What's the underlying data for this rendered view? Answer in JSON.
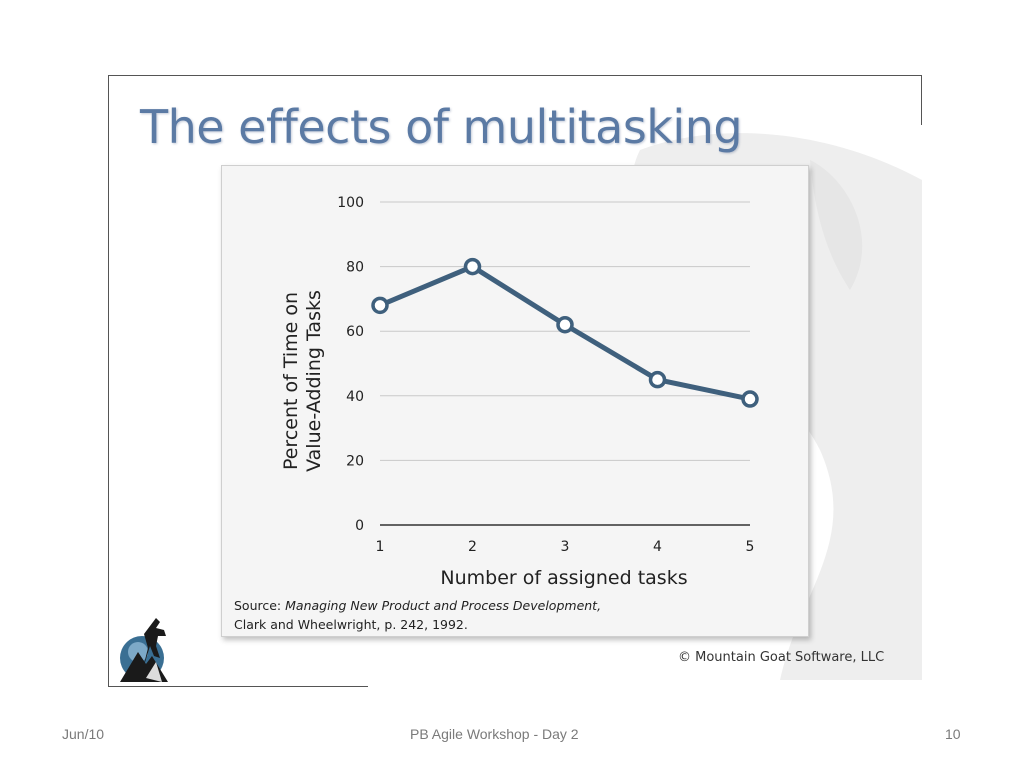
{
  "slide": {
    "title": "The effects of multitasking",
    "copyright": "© Mountain Goat Software, LLC"
  },
  "source": {
    "prefix": "Source: ",
    "book": "Managing New Product and Process Development,",
    "line2": "Clark and Wheelwright, p. 242, 1992."
  },
  "footer": {
    "date": "Jun/10",
    "center": "PB Agile Workshop - Day 2",
    "page": "10"
  },
  "colors": {
    "title": "#5b7aa4",
    "series": "#3f607d"
  },
  "chart_data": {
    "type": "line",
    "x": [
      1,
      2,
      3,
      4,
      5
    ],
    "categories": [
      "1",
      "2",
      "3",
      "4",
      "5"
    ],
    "series": [
      {
        "values": [
          68,
          80,
          62,
          45,
          39
        ]
      }
    ],
    "xlabel": "Number of assigned tasks",
    "ylabel_line1": "Percent of Time on",
    "ylabel_line2": "Value-Adding Tasks",
    "yticks": [
      0,
      20,
      40,
      60,
      80,
      100
    ],
    "ylim": [
      0,
      100
    ],
    "grid": true,
    "markers": "hollow circles"
  }
}
